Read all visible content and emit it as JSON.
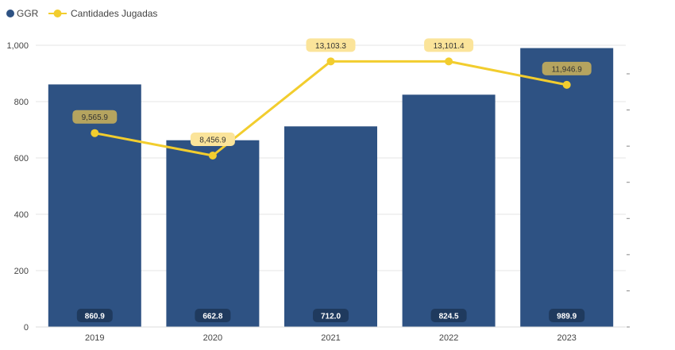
{
  "chart_data": {
    "type": "bar",
    "categories": [
      "2019",
      "2020",
      "2021",
      "2022",
      "2023"
    ],
    "series": [
      {
        "name": "GGR",
        "type": "bar",
        "axis": "left",
        "values": [
          860.9,
          662.8,
          712.0,
          824.5,
          989.9
        ],
        "value_labels": [
          "860.9",
          "662.8",
          "712.0",
          "824.5",
          "989.9"
        ]
      },
      {
        "name": "Cantidades Jugadas",
        "type": "line",
        "axis": "right",
        "values": [
          9565.9,
          8456.9,
          13103.3,
          13101.4,
          11946.9
        ],
        "value_labels": [
          "9,565.9",
          "8,456.9",
          "13,103.3",
          "13,101.4",
          "11,946.9"
        ]
      }
    ],
    "y_left": {
      "ticks": [
        0,
        200,
        400,
        600,
        800,
        1000
      ],
      "tick_labels": [
        "0",
        "200",
        "400",
        "600",
        "800",
        "1,000"
      ],
      "range": [
        0,
        1000
      ]
    },
    "y_right": {
      "range": [
        0,
        13900
      ],
      "tick_count": 8
    },
    "grid": true,
    "legend_position": "top-left",
    "colors": {
      "bar": "#2e5283",
      "line": "#f2cd2e",
      "label_bg_dark": "#b5a45f",
      "label_bg_light": "#fbe49a",
      "bar_label_bg": "#1f3a5e"
    }
  }
}
